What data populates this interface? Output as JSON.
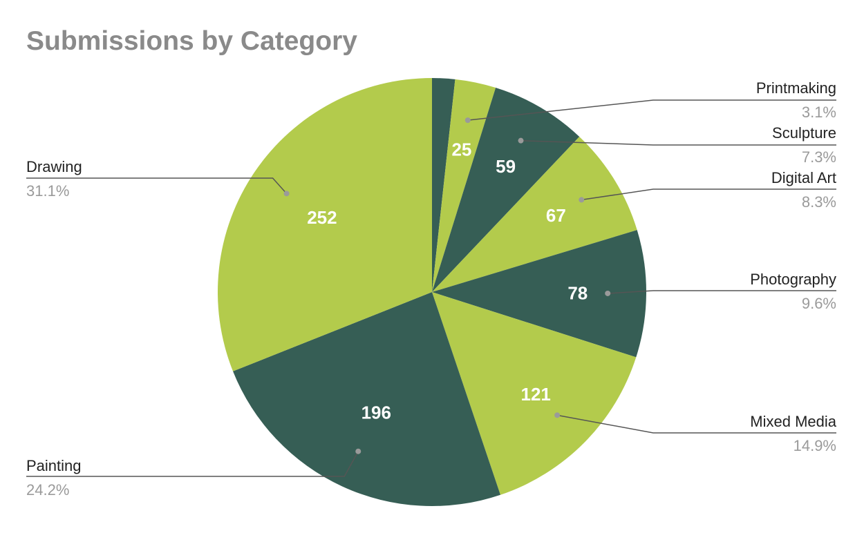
{
  "chart_data": {
    "type": "pie",
    "title": "Submissions by Category",
    "colors": {
      "light": "#b3cb4c",
      "dark": "#365e55",
      "leader": "#555555",
      "leader_dot": "#9a9a9a"
    },
    "slices": [
      {
        "name": "",
        "value": 14,
        "percent": "",
        "value_label": "",
        "color": "dark"
      },
      {
        "name": "Printmaking",
        "value": 25,
        "percent": "3.1%",
        "value_label": "25",
        "color": "light"
      },
      {
        "name": "Sculpture",
        "value": 59,
        "percent": "7.3%",
        "value_label": "59",
        "color": "dark"
      },
      {
        "name": "Digital Art",
        "value": 67,
        "percent": "8.3%",
        "value_label": "67",
        "color": "light"
      },
      {
        "name": "Photography",
        "value": 78,
        "percent": "9.6%",
        "value_label": "78",
        "color": "dark"
      },
      {
        "name": "Mixed Media",
        "value": 121,
        "percent": "14.9%",
        "value_label": "121",
        "color": "light"
      },
      {
        "name": "Painting",
        "value": 196,
        "percent": "24.2%",
        "value_label": "196",
        "color": "dark"
      },
      {
        "name": "Drawing",
        "value": 252,
        "percent": "31.1%",
        "value_label": "252",
        "color": "light"
      }
    ]
  }
}
